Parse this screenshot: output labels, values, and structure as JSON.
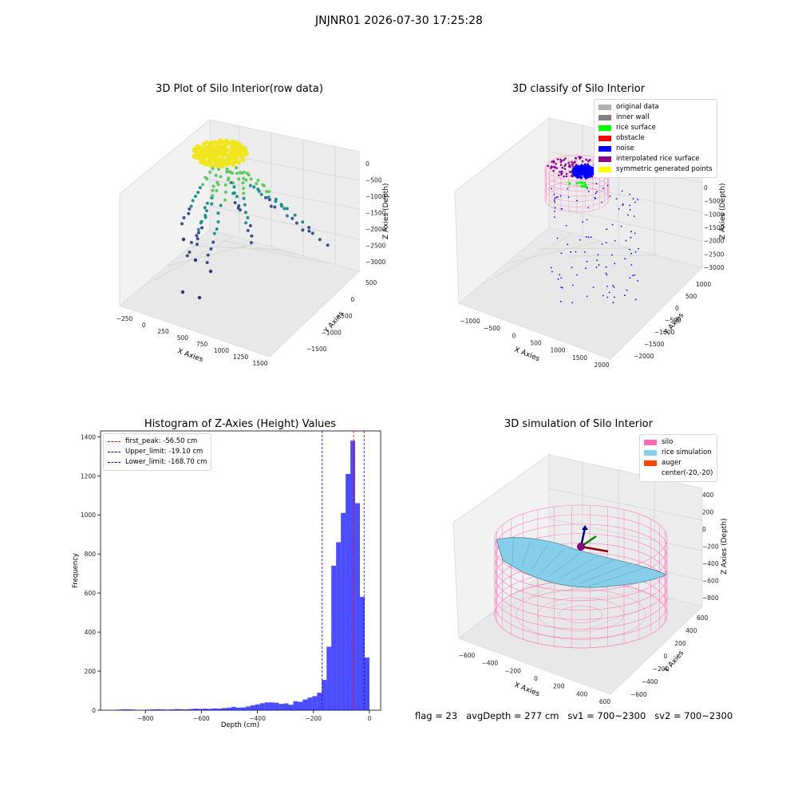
{
  "suptitle": "JNJNR01 2026-07-30 17:25:28",
  "status_line": "flag = 23   avgDepth = 277 cm   sv1 = 700~2300   sv2 = 700~2300",
  "colors": {
    "silo": "#ff69b4",
    "rice_sim": "#87ceeb",
    "auger": "#ff4500",
    "hist_bar": "#0000ff",
    "first_peak": "#ff0000",
    "limits": "#0000cc",
    "wall": "#808080",
    "original": "#b0b0b0",
    "rice_surface": "#00ff00",
    "obstacle": "#ff0000",
    "noise": "#0000ff",
    "interp": "#8b008b",
    "sym": "#ffff00"
  },
  "chart_data": [
    {
      "type": "scatter",
      "title": "3D Plot of Silo Interior(row data)",
      "xlabel": "X Axies",
      "ylabel": "Y Axies",
      "zlabel": "Z Axies (Depth)",
      "x_ticks": [
        "−250",
        "0",
        "250",
        "500",
        "750",
        "1000",
        "1250",
        "1500"
      ],
      "y_ticks": [
        "500",
        "0",
        "−500",
        "−1000",
        "−1500"
      ],
      "z_ticks": [
        "0",
        "−500",
        "−1000",
        "−1500",
        "−2000",
        "−2500",
        "−3000"
      ],
      "xlim": [
        -300,
        1600
      ],
      "ylim": [
        -1700,
        600
      ],
      "zlim": [
        -3300,
        100
      ]
    },
    {
      "type": "scatter",
      "title": "3D classify of Silo Interior",
      "xlabel": "X Axies",
      "ylabel": "Y Axies",
      "zlabel": "Z Axies (Depth)",
      "x_ticks": [
        "−1000",
        "−500",
        "0",
        "500",
        "1000",
        "1500",
        "2000"
      ],
      "y_ticks": [
        "1000",
        "500",
        "0",
        "−500",
        "−1000",
        "−1500",
        "−2000"
      ],
      "z_ticks": [
        "0",
        "−500",
        "−1000",
        "−1500",
        "−2000",
        "−2500",
        "−3000"
      ],
      "legend": [
        {
          "label": "original data",
          "color": "#b0b0b0"
        },
        {
          "label": "inner wall",
          "color": "#808080"
        },
        {
          "label": "rice surface",
          "color": "#00ff00"
        },
        {
          "label": "obstacle",
          "color": "#ff0000"
        },
        {
          "label": "noise",
          "color": "#0000ff"
        },
        {
          "label": "interpolated rice surface",
          "color": "#8b008b"
        },
        {
          "label": "symmetric generated points",
          "color": "#ffff00"
        }
      ],
      "legend_position": "upper right"
    },
    {
      "type": "bar",
      "title": "Histogram of Z-Axies (Height) Values",
      "xlabel": "Depth (cm)",
      "ylabel": "Frequency",
      "xlim": [
        -960,
        40
      ],
      "ylim": [
        0,
        1430
      ],
      "x_ticks": [
        -800,
        -600,
        -400,
        -200,
        0
      ],
      "y_ticks": [
        0,
        200,
        400,
        600,
        800,
        1000,
        1200,
        1400
      ],
      "bin_width": 17,
      "bins_start": [
        -935,
        -918,
        -901,
        -884,
        -867,
        -850,
        -833,
        -816,
        -799,
        -782,
        -765,
        -748,
        -731,
        -714,
        -697,
        -680,
        -663,
        -646,
        -629,
        -612,
        -595,
        -578,
        -561,
        -544,
        -527,
        -510,
        -493,
        -476,
        -459,
        -442,
        -425,
        -408,
        -391,
        -374,
        -357,
        -340,
        -323,
        -306,
        -289,
        -272,
        -255,
        -238,
        -221,
        -204,
        -187,
        -170,
        -153,
        -136,
        -119,
        -102,
        -85,
        -68,
        -51,
        -34,
        -17
      ],
      "values": [
        2,
        0,
        3,
        4,
        4,
        3,
        0,
        2,
        3,
        4,
        5,
        4,
        3,
        4,
        6,
        5,
        4,
        6,
        8,
        7,
        8,
        7,
        9,
        8,
        11,
        13,
        17,
        13,
        14,
        19,
        25,
        30,
        36,
        40,
        40,
        38,
        32,
        35,
        28,
        46,
        43,
        55,
        65,
        72,
        90,
        155,
        325,
        740,
        860,
        1010,
        1210,
        1380,
        1060,
        580,
        270
      ],
      "lines": [
        {
          "label": "first_peak: -56.50 cm",
          "x": -56.5,
          "color": "#ff0000"
        },
        {
          "label": "Upper_limit: -19.10 cm",
          "x": -19.1,
          "color": "#0000cc"
        },
        {
          "label": "Lower_limit: -168.70 cm",
          "x": -168.7,
          "color": "#0000cc"
        }
      ],
      "legend_position": "upper left"
    },
    {
      "type": "surface",
      "title": "3D simulation of Silo Interior",
      "xlabel": "X Axies",
      "ylabel": "Y Axies",
      "zlabel": "Z Axies (Depth)",
      "x_ticks": [
        "−600",
        "−400",
        "−200",
        "0",
        "200",
        "400",
        "600"
      ],
      "y_ticks": [
        "600",
        "400",
        "200",
        "0",
        "−200",
        "−400",
        "−600"
      ],
      "z_ticks": [
        "400",
        "200",
        "0",
        "−200",
        "−400",
        "−600",
        "−800"
      ],
      "legend": [
        {
          "label": "silo",
          "color": "#ff69b4"
        },
        {
          "label": "rice simulation",
          "color": "#87ceeb"
        },
        {
          "label": "auger",
          "color": "#ff4500"
        },
        {
          "label": "center(-20,-20)",
          "color": ""
        }
      ],
      "legend_position": "upper right"
    }
  ]
}
